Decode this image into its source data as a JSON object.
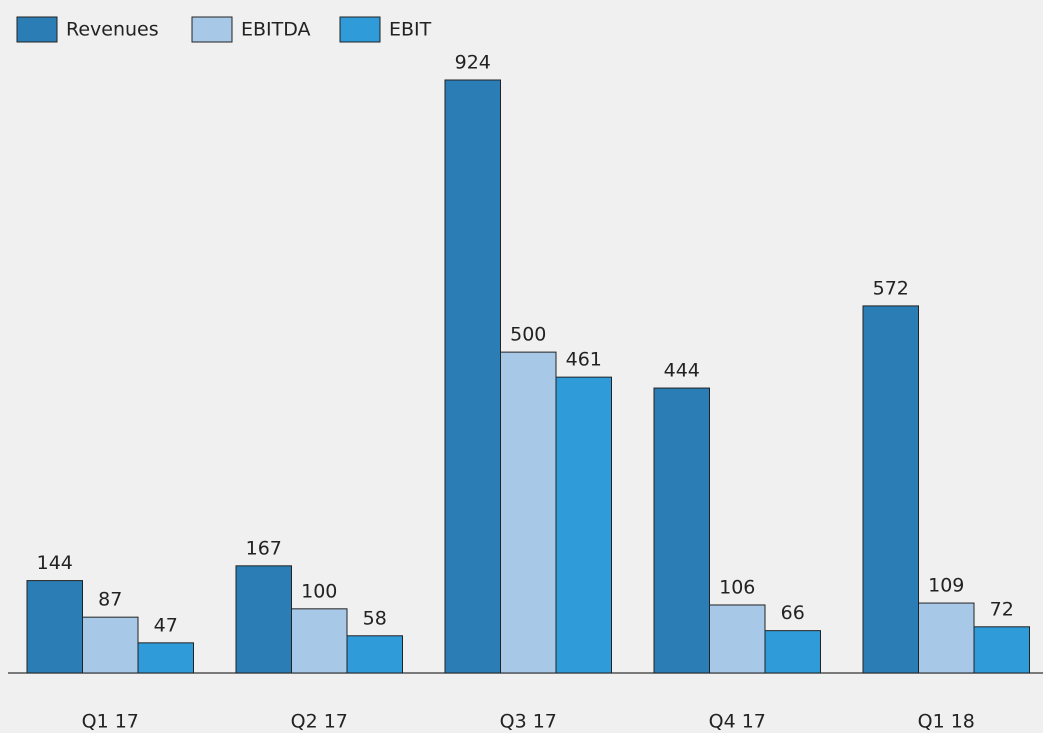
{
  "chart_data": {
    "type": "bar",
    "categories": [
      "Q1 17",
      "Q2 17",
      "Q3 17",
      "Q4 17",
      "Q1 18"
    ],
    "series": [
      {
        "name": "Revenues",
        "color": "#2a7db5",
        "values": [
          144,
          167,
          924,
          444,
          572
        ]
      },
      {
        "name": "EBITDA",
        "color": "#a8c8e8",
        "values": [
          87,
          100,
          500,
          106,
          109
        ]
      },
      {
        "name": "EBIT",
        "color": "#2f9bd8",
        "values": [
          47,
          58,
          461,
          66,
          72
        ]
      }
    ],
    "legend": "top-left"
  }
}
